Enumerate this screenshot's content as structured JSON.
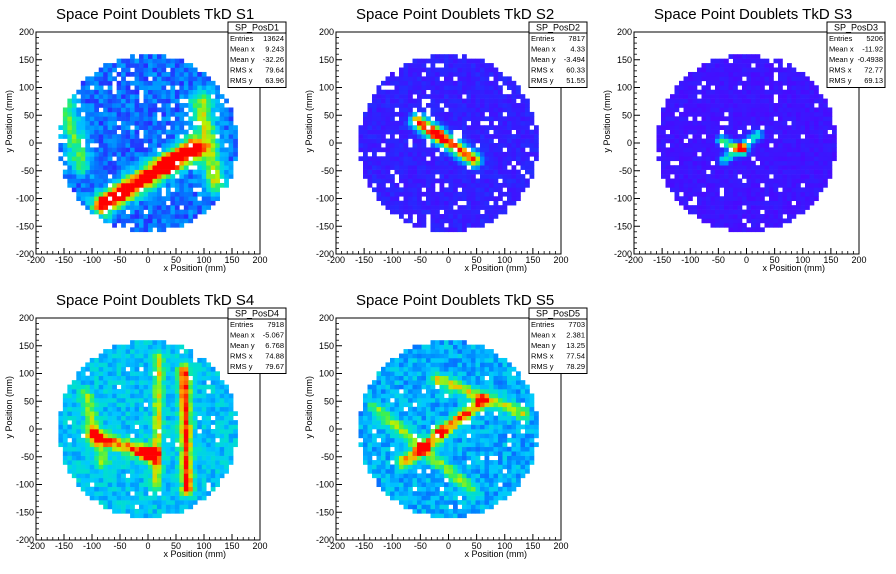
{
  "chart_data": [
    {
      "type": "heatmap",
      "title": "Space Point Doublets TkD S1",
      "xlabel": "x Position (mm)",
      "ylabel": "y Position (mm)",
      "xlim": [
        -200,
        200
      ],
      "ylim": [
        -200,
        200
      ],
      "xticks": [
        -200,
        -150,
        -100,
        -50,
        0,
        50,
        100,
        150,
        200
      ],
      "yticks": [
        -200,
        -150,
        -100,
        -50,
        0,
        50,
        100,
        150,
        200
      ],
      "stats": {
        "name": "SP_PosD1",
        "rows": [
          {
            "label": "Entries",
            "value": "13624"
          },
          {
            "label": "Mean x",
            "value": "9.243"
          },
          {
            "label": "Mean y",
            "value": "-32.26"
          },
          {
            "label": "RMS x",
            "value": "79.64"
          },
          {
            "label": "RMS y",
            "value": "63.96"
          }
        ]
      },
      "radius": 160,
      "hotspots": [
        {
          "type": "line",
          "x1": -80,
          "y1": -110,
          "x2": 80,
          "y2": -10,
          "width": 22,
          "amp": 0.95
        },
        {
          "type": "line",
          "x1": 95,
          "y1": 75,
          "x2": 120,
          "y2": -70,
          "width": 22,
          "amp": 0.5
        },
        {
          "type": "line",
          "x1": -150,
          "y1": 80,
          "x2": -120,
          "y2": -40,
          "width": 20,
          "amp": 0.4
        },
        {
          "type": "point",
          "x": 35,
          "y": -35,
          "width": 15,
          "amp": 0.6
        }
      ],
      "background": 0.12,
      "noise": 0.2,
      "hole_fraction": 0.08
    },
    {
      "type": "heatmap",
      "title": "Space Point Doublets TkD S2",
      "xlabel": "x Position (mm)",
      "ylabel": "y Position (mm)",
      "xlim": [
        -200,
        200
      ],
      "ylim": [
        -200,
        200
      ],
      "xticks": [
        -200,
        -150,
        -100,
        -50,
        0,
        50,
        100,
        150,
        200
      ],
      "yticks": [
        -200,
        -150,
        -100,
        -50,
        0,
        50,
        100,
        150,
        200
      ],
      "stats": {
        "name": "SP_PosD2",
        "rows": [
          {
            "label": "Entries",
            "value": "7817"
          },
          {
            "label": "Mean x",
            "value": "4.33"
          },
          {
            "label": "Mean y",
            "value": "-3.494"
          },
          {
            "label": "RMS x",
            "value": "60.33"
          },
          {
            "label": "RMS y",
            "value": "51.55"
          }
        ]
      },
      "radius": 160,
      "hotspots": [
        {
          "type": "line",
          "x1": -55,
          "y1": 40,
          "x2": 45,
          "y2": -30,
          "width": 14,
          "amp": 0.9
        },
        {
          "type": "point",
          "x": -20,
          "y": 15,
          "width": 16,
          "amp": 0.35
        }
      ],
      "background": 0.05,
      "noise": 0.08,
      "hole_fraction": 0.09
    },
    {
      "type": "heatmap",
      "title": "Space Point Doublets TkD S3",
      "xlabel": "x Position (mm)",
      "ylabel": "y Position (mm)",
      "xlim": [
        -200,
        200
      ],
      "ylim": [
        -200,
        200
      ],
      "xticks": [
        -200,
        -150,
        -100,
        -50,
        0,
        50,
        100,
        150,
        200
      ],
      "yticks": [
        -200,
        -150,
        -100,
        -50,
        0,
        50,
        100,
        150,
        200
      ],
      "stats": {
        "name": "SP_PosD3",
        "rows": [
          {
            "label": "Entries",
            "value": "5206"
          },
          {
            "label": "Mean x",
            "value": "-11.92"
          },
          {
            "label": "Mean y",
            "value": "-0.4938"
          },
          {
            "label": "RMS x",
            "value": "72.77"
          },
          {
            "label": "RMS y",
            "value": "69.13"
          }
        ]
      },
      "radius": 160,
      "hotspots": [
        {
          "type": "line",
          "x1": -45,
          "y1": 5,
          "x2": -5,
          "y2": -15,
          "width": 9,
          "amp": 0.55
        },
        {
          "type": "line",
          "x1": -40,
          "y1": -30,
          "x2": 20,
          "y2": 15,
          "width": 9,
          "amp": 0.45
        },
        {
          "type": "point",
          "x": -8,
          "y": -8,
          "width": 8,
          "amp": 0.5
        }
      ],
      "background": 0.03,
      "noise": 0.06,
      "hole_fraction": 0.07
    },
    {
      "type": "heatmap",
      "title": "Space Point Doublets TkD S4",
      "xlabel": "x Position (mm)",
      "ylabel": "y Position (mm)",
      "xlim": [
        -200,
        200
      ],
      "ylim": [
        -200,
        200
      ],
      "xticks": [
        -200,
        -150,
        -100,
        -50,
        0,
        50,
        100,
        150,
        200
      ],
      "yticks": [
        -200,
        -150,
        -100,
        -50,
        0,
        50,
        100,
        150,
        200
      ],
      "stats": {
        "name": "SP_PosD4",
        "rows": [
          {
            "label": "Entries",
            "value": "7918"
          },
          {
            "label": "Mean x",
            "value": "-5.067"
          },
          {
            "label": "Mean y",
            "value": "6.768"
          },
          {
            "label": "RMS x",
            "value": "74.88"
          },
          {
            "label": "RMS y",
            "value": "79.67"
          }
        ]
      },
      "radius": 160,
      "hotspots": [
        {
          "type": "line",
          "x1": 65,
          "y1": 110,
          "x2": 70,
          "y2": -110,
          "width": 12,
          "amp": 0.6
        },
        {
          "type": "line",
          "x1": 20,
          "y1": 130,
          "x2": 15,
          "y2": -100,
          "width": 10,
          "amp": 0.4
        },
        {
          "type": "line",
          "x1": -100,
          "y1": -10,
          "x2": 10,
          "y2": -50,
          "width": 14,
          "amp": 0.55
        },
        {
          "type": "line",
          "x1": -110,
          "y1": 60,
          "x2": -80,
          "y2": -60,
          "width": 14,
          "amp": 0.3
        },
        {
          "type": "point",
          "x": 0,
          "y": -40,
          "width": 14,
          "amp": 0.55
        }
      ],
      "background": 0.28,
      "noise": 0.2,
      "hole_fraction": 0.03
    },
    {
      "type": "heatmap",
      "title": "Space Point Doublets TkD S5",
      "xlabel": "x Position (mm)",
      "ylabel": "y Position (mm)",
      "xlim": [
        -200,
        200
      ],
      "ylim": [
        -200,
        200
      ],
      "xticks": [
        -200,
        -150,
        -100,
        -50,
        0,
        50,
        100,
        150,
        200
      ],
      "yticks": [
        -200,
        -150,
        -100,
        -50,
        0,
        50,
        100,
        150,
        200
      ],
      "stats": {
        "name": "SP_PosD5",
        "rows": [
          {
            "label": "Entries",
            "value": "7703"
          },
          {
            "label": "Mean x",
            "value": "2.381"
          },
          {
            "label": "Mean y",
            "value": "13.25"
          },
          {
            "label": "RMS x",
            "value": "77.54"
          },
          {
            "label": "RMS y",
            "value": "78.29"
          }
        ]
      },
      "radius": 160,
      "hotspots": [
        {
          "type": "line",
          "x1": -80,
          "y1": -60,
          "x2": 60,
          "y2": 50,
          "width": 13,
          "amp": 0.6
        },
        {
          "type": "line",
          "x1": -20,
          "y1": 90,
          "x2": 130,
          "y2": 30,
          "width": 13,
          "amp": 0.45
        },
        {
          "type": "line",
          "x1": -130,
          "y1": 40,
          "x2": 40,
          "y2": -110,
          "width": 13,
          "amp": 0.35
        },
        {
          "type": "point",
          "x": -15,
          "y": -5,
          "width": 10,
          "amp": 0.5
        }
      ],
      "background": 0.22,
      "noise": 0.22,
      "hole_fraction": 0.04
    }
  ]
}
